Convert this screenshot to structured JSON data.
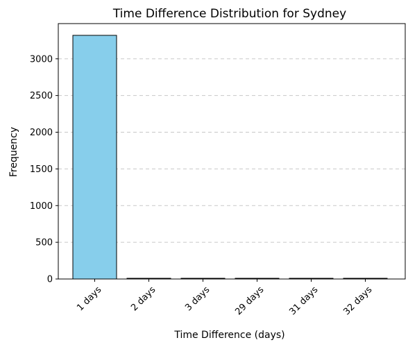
{
  "chart_data": {
    "type": "bar",
    "title": "Time Difference Distribution for Sydney",
    "xlabel": "Time Difference (days)",
    "ylabel": "Frequency",
    "categories": [
      "1 days",
      "2 days",
      "3 days",
      "29 days",
      "31 days",
      "32 days"
    ],
    "values": [
      3320,
      8,
      3,
      1,
      1,
      1
    ],
    "ylim": [
      0,
      3480
    ],
    "yticks": [
      0,
      500,
      1000,
      1500,
      2000,
      2500,
      3000
    ],
    "grid": "y-dashed",
    "bar_color": "#87ceeb",
    "edge_color": "#000000",
    "legend": "none"
  }
}
